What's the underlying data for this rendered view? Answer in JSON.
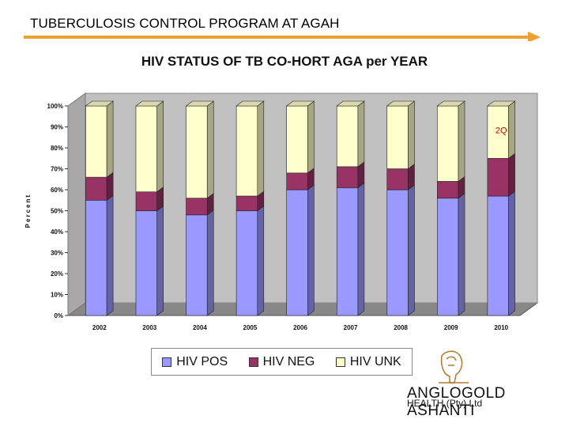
{
  "page_title": "TUBERCULOSIS CONTROL PROGRAM AT AGAH",
  "colors": {
    "accent_line": "#f0a030",
    "hiv_pos": "#9999ff",
    "hiv_neg": "#993366",
    "hiv_unk": "#ffffcc",
    "plot_bg": "#c0c0c0",
    "annotation": "#cc0000"
  },
  "company": {
    "name_part1": "ANGLOGOLD",
    "name_part2": "ASHANTI",
    "sub": "HEALTH (Pty) Ltd",
    "logo_icon": "lion-logo-icon"
  },
  "chart_data": {
    "type": "bar",
    "stacked": true,
    "percent": true,
    "title": "HIV STATUS OF TB CO-HORT AGA per YEAR",
    "ylabel": "Percent",
    "xlabel": "",
    "ylim": [
      0,
      100
    ],
    "y_ticks": [
      "0%",
      "10%",
      "20%",
      "30%",
      "40%",
      "50%",
      "60%",
      "70%",
      "80%",
      "90%",
      "100%"
    ],
    "categories": [
      "2002",
      "2003",
      "2004",
      "2005",
      "2006",
      "2007",
      "2008",
      "2009",
      "2010"
    ],
    "series": [
      {
        "name": "HIV POS",
        "values": [
          55,
          50,
          48,
          50,
          60,
          61,
          60,
          56,
          57
        ]
      },
      {
        "name": "HIV NEG",
        "values": [
          11,
          9,
          8,
          7,
          8,
          10,
          10,
          8,
          18
        ]
      },
      {
        "name": "HIV UNK",
        "values": [
          34,
          41,
          44,
          43,
          32,
          29,
          30,
          36,
          25
        ]
      }
    ],
    "annotations": [
      {
        "category": "2010",
        "text": "2Q"
      }
    ],
    "grid": false,
    "legend_position": "bottom"
  }
}
